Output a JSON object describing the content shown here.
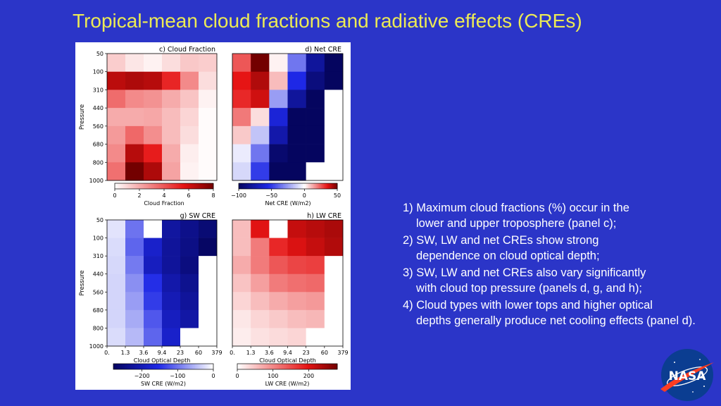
{
  "slide": {
    "title": "Tropical-mean cloud fractions and radiative effects (CREs)"
  },
  "notes": [
    {
      "num": "1)",
      "line1": "Maximum cloud fractions (%) occur in the",
      "line2": "lower and upper troposphere (panel c);"
    },
    {
      "num": "2)",
      "line1": "SW, LW and net CREs show strong",
      "line2": "dependence on cloud optical depth;"
    },
    {
      "num": "3)",
      "line1": "SW, LW and net CREs also vary significantly",
      "line2": "with cloud top pressure (panels d, g, and h);"
    },
    {
      "num": "4)",
      "line1": "Cloud types with lower tops and higher optical",
      "line2": "depths generally produce net cooling effects (panel d)."
    }
  ],
  "logo": {
    "text": "NASA",
    "colors": {
      "circle": "#0b3d91",
      "swoosh": "#fc3d21"
    }
  },
  "chart_data": [
    {
      "type": "heatmap",
      "title": "c) Cloud Fraction",
      "ylabel": "Pressure",
      "y_ticks": [
        "50",
        "100",
        "310",
        "440",
        "560",
        "680",
        "800",
        "1000"
      ],
      "x_ticks": [],
      "colorbar": {
        "label": "Cloud Fraction",
        "range": [
          0,
          8
        ],
        "ticks": [
          0,
          2,
          4,
          6,
          8
        ],
        "cmap": "white-red"
      },
      "values": [
        [
          1.2,
          0.6,
          0.3,
          0.8,
          1.3,
          1.2
        ],
        [
          6.5,
          6.8,
          6.6,
          5.2,
          2.8,
          0.8
        ],
        [
          3.5,
          2.8,
          2.6,
          2.0,
          1.4,
          0.3
        ],
        [
          2.0,
          2.0,
          2.1,
          1.6,
          1.0,
          0.1
        ],
        [
          2.4,
          3.6,
          2.7,
          1.6,
          0.8,
          0.1
        ],
        [
          2.8,
          6.6,
          5.4,
          2.0,
          0.4,
          0.1
        ],
        [
          3.4,
          8.0,
          6.8,
          2.2,
          0.3,
          0.1
        ]
      ]
    },
    {
      "type": "heatmap",
      "title": "d) Net CRE",
      "ylabel": "",
      "y_ticks": [],
      "x_ticks": [],
      "colorbar": {
        "label": "Net CRE (W/m2)",
        "range": [
          -100,
          50
        ],
        "ticks": [
          -100,
          -50,
          0,
          50
        ],
        "cmap": "blue-white-red"
      },
      "values": [
        [
          25,
          50,
          2,
          -35,
          -80,
          -110
        ],
        [
          35,
          42,
          10,
          -55,
          -90,
          -130
        ],
        [
          32,
          38,
          -25,
          -80,
          -115,
          null
        ],
        [
          20,
          5,
          -60,
          -100,
          -130,
          null
        ],
        [
          8,
          -15,
          -75,
          -110,
          -140,
          null
        ],
        [
          -5,
          -35,
          -95,
          -125,
          -150,
          null
        ],
        [
          -10,
          -50,
          -105,
          -130,
          null,
          null
        ]
      ]
    },
    {
      "type": "heatmap",
      "title": "g) SW CRE",
      "ylabel": "Pressure",
      "xlabel": "Cloud Optical Depth",
      "y_ticks": [
        "50",
        "100",
        "310",
        "440",
        "560",
        "680",
        "800",
        "1000"
      ],
      "x_ticks": [
        "0.",
        "1.3",
        "3.6",
        "9.4",
        "23",
        "60",
        "379"
      ],
      "colorbar": {
        "label": "SW CRE (W/m2)",
        "range": [
          -280,
          0
        ],
        "ticks": [
          -200,
          -100,
          0
        ],
        "cmap": "navy-white-red"
      },
      "values": [
        [
          -20,
          -100,
          0,
          -220,
          -240,
          -260
        ],
        [
          -25,
          -110,
          -180,
          -225,
          -245,
          -275
        ],
        [
          -28,
          -95,
          -190,
          -225,
          -250,
          null
        ],
        [
          -30,
          -80,
          -150,
          -210,
          -235,
          null
        ],
        [
          -30,
          -70,
          -140,
          -200,
          -225,
          null
        ],
        [
          -30,
          -60,
          -120,
          -190,
          -215,
          null
        ],
        [
          -25,
          -50,
          -110,
          -180,
          null,
          null
        ]
      ]
    },
    {
      "type": "heatmap",
      "title": "h) LW CRE",
      "ylabel": "",
      "xlabel": "Cloud Optical Depth",
      "y_ticks": [],
      "x_ticks": [
        "0.",
        "1.3",
        "3.6",
        "9.4",
        "23",
        "60",
        "379"
      ],
      "colorbar": {
        "label": "LW CRE (W/m2)",
        "range": [
          0,
          280
        ],
        "ticks": [
          0,
          100,
          200
        ],
        "cmap": "white-red"
      },
      "values": [
        [
          55,
          200,
          0,
          220,
          230,
          240
        ],
        [
          55,
          110,
          180,
          205,
          220,
          235
        ],
        [
          70,
          110,
          140,
          155,
          160,
          null
        ],
        [
          50,
          80,
          110,
          120,
          125,
          null
        ],
        [
          35,
          55,
          70,
          80,
          85,
          null
        ],
        [
          20,
          35,
          45,
          55,
          60,
          null
        ],
        [
          15,
          25,
          30,
          35,
          null,
          null
        ]
      ]
    }
  ]
}
